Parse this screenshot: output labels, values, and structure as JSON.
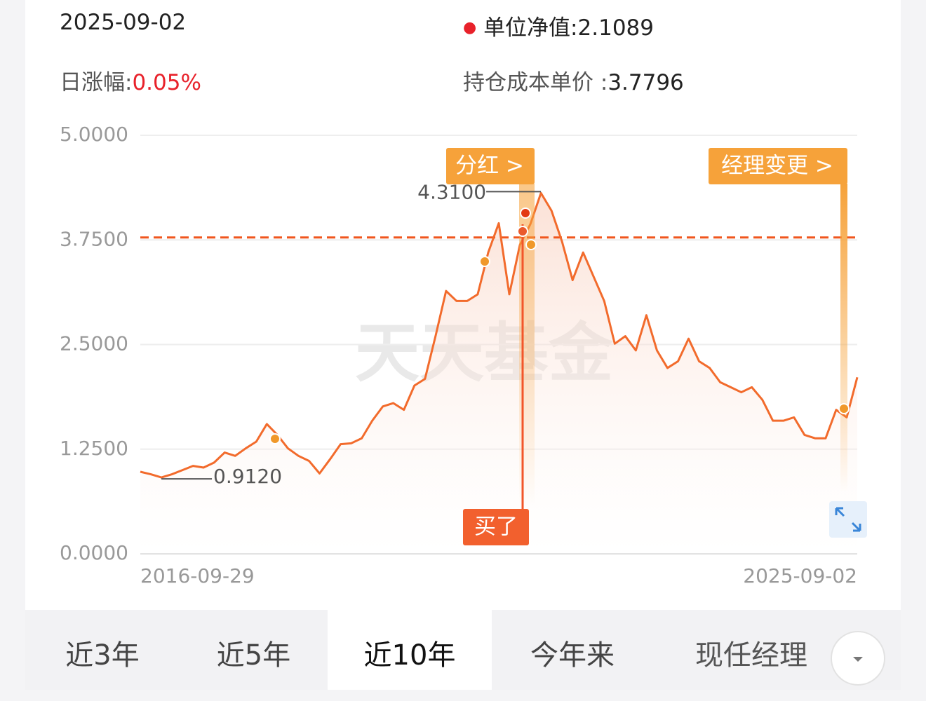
{
  "header": {
    "date": "2025-09-02",
    "nav_label": "单位净值:",
    "change_label": "日涨幅:",
    "change": "0.05%",
    "cost_label": "持仓成本单价 :"
  },
  "chart_data": {
    "type": "line",
    "watermark": "天天基金",
    "categories": [
      "2016-09-29",
      null,
      null,
      null,
      null,
      null,
      null,
      null,
      null,
      null,
      null,
      null,
      null,
      null,
      null,
      null,
      null,
      null,
      null,
      null,
      null,
      null,
      null,
      null,
      null,
      null,
      null,
      null,
      null,
      null,
      null,
      null,
      null,
      null,
      null,
      null,
      null,
      null,
      null,
      null,
      null,
      null,
      null,
      null,
      null,
      null,
      null,
      null,
      null,
      null,
      null,
      null,
      null,
      null,
      null,
      null,
      null,
      null,
      null,
      null,
      null,
      null,
      null,
      null,
      null,
      null,
      null,
      null,
      "2025-09-02"
    ],
    "values": [
      0.98,
      0.95,
      0.912,
      0.95,
      1.0,
      1.05,
      1.03,
      1.09,
      1.21,
      1.17,
      1.26,
      1.34,
      1.55,
      1.42,
      1.26,
      1.17,
      1.11,
      0.96,
      1.13,
      1.31,
      1.32,
      1.38,
      1.59,
      1.76,
      1.8,
      1.72,
      2.01,
      2.09,
      2.6,
      3.14,
      3.02,
      3.02,
      3.1,
      3.6,
      3.95,
      3.1,
      3.69,
      3.94,
      4.31,
      4.1,
      3.73,
      3.27,
      3.6,
      3.31,
      3.02,
      2.51,
      2.6,
      2.43,
      2.85,
      2.43,
      2.22,
      2.3,
      2.57,
      2.3,
      2.22,
      2.05,
      1.99,
      1.93,
      1.99,
      1.84,
      1.59,
      1.59,
      1.63,
      1.42,
      1.38,
      1.38,
      1.72,
      1.63,
      2.1089
    ],
    "color": "#f26b2c",
    "cost_line": 3.7796,
    "cost_color": "#f0561e",
    "annotations": [
      {
        "value": 4.31,
        "label": "4.3100"
      },
      {
        "value": 0.912,
        "label": "0.9120"
      }
    ],
    "events": [
      "分红 >",
      "买了",
      "经理变更 >"
    ],
    "ylim": [
      0,
      5
    ],
    "yticks": [
      {
        "value": 0,
        "label": "0.0000"
      },
      {
        "value": 1.25,
        "label": "1.2500"
      },
      {
        "value": 2.5,
        "label": "2.5000"
      },
      {
        "value": 3.75,
        "label": "3.7500"
      },
      {
        "value": 5,
        "label": "5.0000"
      }
    ],
    "grid": true
  },
  "tabs": [
    "近3年",
    "近5年",
    "近10年",
    "今年来",
    "现任经理"
  ]
}
